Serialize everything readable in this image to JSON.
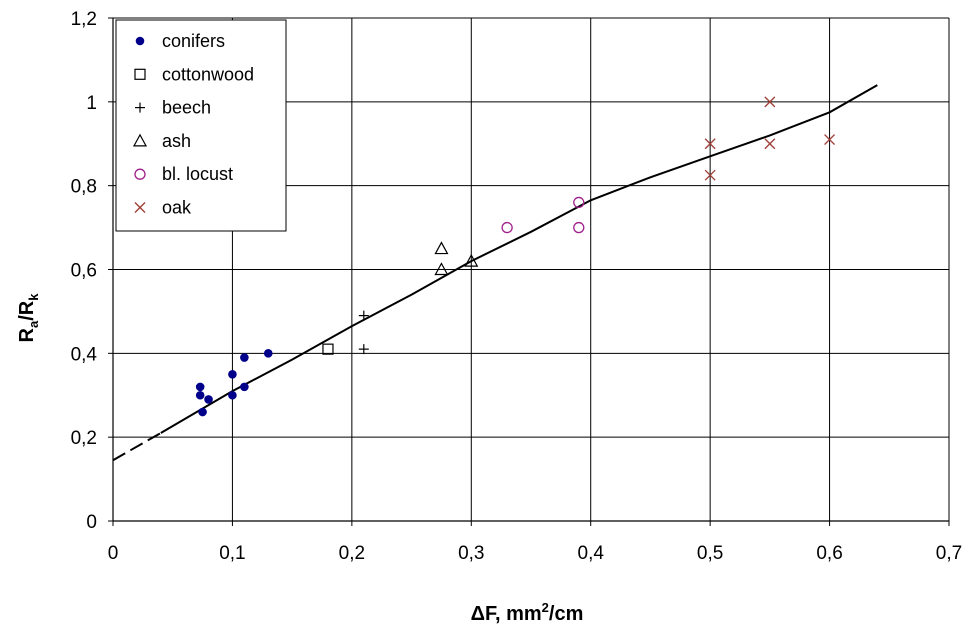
{
  "chart_data": {
    "type": "scatter",
    "xlabel": {
      "main": "ΔF, mm",
      "sup": "2",
      "rest": "/cm"
    },
    "ylabel": {
      "main": "R",
      "sub1": "a",
      "sep": "/R",
      "sub2": "k"
    },
    "xlim": [
      0,
      0.7
    ],
    "ylim": [
      0,
      1.2
    ],
    "x_ticks": [
      0,
      0.1,
      0.2,
      0.3,
      0.4,
      0.5,
      0.6,
      0.7
    ],
    "y_ticks": [
      0,
      0.2,
      0.4,
      0.6,
      0.8,
      1.0,
      1.2
    ],
    "x_tick_labels": [
      "0",
      "0,1",
      "0,2",
      "0,3",
      "0,4",
      "0,5",
      "0,6",
      "0,7"
    ],
    "y_tick_labels": [
      "0",
      "0,2",
      "0,4",
      "0,6",
      "0,8",
      "1",
      "1,2"
    ],
    "grid": "major, both axes",
    "legend_position": "top-left",
    "series": [
      {
        "name": "conifers",
        "marker": "filled-circle",
        "color": "#00008B",
        "points": [
          [
            0.073,
            0.32
          ],
          [
            0.073,
            0.3
          ],
          [
            0.075,
            0.26
          ],
          [
            0.08,
            0.29
          ],
          [
            0.1,
            0.35
          ],
          [
            0.1,
            0.3
          ],
          [
            0.11,
            0.39
          ],
          [
            0.11,
            0.32
          ],
          [
            0.13,
            0.4
          ]
        ]
      },
      {
        "name": "cottonwood",
        "marker": "square",
        "color": "#000000",
        "points": [
          [
            0.18,
            0.41
          ]
        ]
      },
      {
        "name": "beech",
        "marker": "plus",
        "color": "#000000",
        "points": [
          [
            0.21,
            0.49
          ],
          [
            0.21,
            0.41
          ]
        ]
      },
      {
        "name": "ash",
        "marker": "triangle",
        "color": "#000000",
        "points": [
          [
            0.275,
            0.65
          ],
          [
            0.275,
            0.6
          ],
          [
            0.3,
            0.62
          ]
        ]
      },
      {
        "name": "bl. locust",
        "marker": "circle",
        "color": "#A0208A",
        "points": [
          [
            0.33,
            0.7
          ],
          [
            0.39,
            0.76
          ],
          [
            0.39,
            0.7
          ]
        ]
      },
      {
        "name": "oak",
        "marker": "cross",
        "color": "#A0403A",
        "points": [
          [
            0.5,
            0.9
          ],
          [
            0.5,
            0.825
          ],
          [
            0.55,
            1.0
          ],
          [
            0.55,
            0.9
          ],
          [
            0.6,
            0.91
          ]
        ]
      }
    ],
    "fit_curve": {
      "dashed": [
        [
          0.0,
          0.145
        ],
        [
          0.04,
          0.21
        ]
      ],
      "solid": [
        [
          0.04,
          0.21
        ],
        [
          0.1,
          0.31
        ],
        [
          0.15,
          0.385
        ],
        [
          0.2,
          0.465
        ],
        [
          0.25,
          0.54
        ],
        [
          0.3,
          0.62
        ],
        [
          0.35,
          0.69
        ],
        [
          0.4,
          0.765
        ],
        [
          0.45,
          0.82
        ],
        [
          0.5,
          0.87
        ],
        [
          0.55,
          0.92
        ],
        [
          0.6,
          0.975
        ],
        [
          0.64,
          1.04
        ]
      ]
    }
  }
}
